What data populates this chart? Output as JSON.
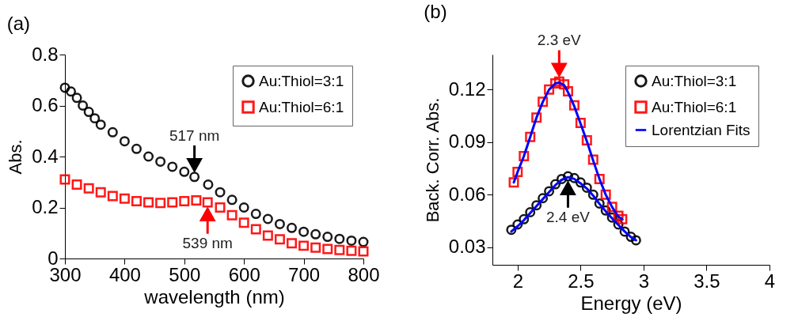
{
  "chart_data": [
    {
      "type": "scatter",
      "title": "(a)",
      "xlabel": "wavelength (nm)",
      "ylabel": "Abs.",
      "xlim": [
        300,
        800
      ],
      "xticks": [
        300,
        400,
        500,
        600,
        700,
        800
      ],
      "ylim": [
        0,
        0.8
      ],
      "yticks": [
        0,
        0.2,
        0.4,
        0.6,
        0.8
      ],
      "legend": "top right",
      "grid": false,
      "series": [
        {
          "name": "Au:Thiol=3:1",
          "color": "#000000",
          "marker": "circle",
          "x": [
            300,
            310,
            320,
            330,
            340,
            350,
            360,
            380,
            400,
            420,
            440,
            460,
            480,
            500,
            517,
            540,
            560,
            580,
            600,
            620,
            640,
            660,
            680,
            700,
            720,
            740,
            760,
            780,
            800
          ],
          "values": [
            0.67,
            0.655,
            0.63,
            0.6,
            0.575,
            0.55,
            0.525,
            0.495,
            0.46,
            0.43,
            0.4,
            0.38,
            0.36,
            0.34,
            0.32,
            0.29,
            0.26,
            0.23,
            0.2,
            0.175,
            0.155,
            0.135,
            0.12,
            0.105,
            0.095,
            0.085,
            0.077,
            0.07,
            0.065
          ]
        },
        {
          "name": "Au:Thiol=6:1",
          "color": "#ff0000",
          "marker": "square",
          "x": [
            300,
            320,
            340,
            360,
            380,
            400,
            420,
            440,
            460,
            480,
            500,
            520,
            539,
            560,
            580,
            600,
            620,
            640,
            660,
            680,
            700,
            720,
            740,
            760,
            780,
            800
          ],
          "values": [
            0.31,
            0.29,
            0.275,
            0.26,
            0.245,
            0.235,
            0.225,
            0.22,
            0.218,
            0.22,
            0.225,
            0.228,
            0.22,
            0.2,
            0.17,
            0.14,
            0.115,
            0.09,
            0.075,
            0.06,
            0.05,
            0.043,
            0.037,
            0.033,
            0.03,
            0.028
          ]
        }
      ],
      "annotations": [
        {
          "text": "517 nm",
          "x": 517,
          "y": 0.32
        },
        {
          "text": "539 nm",
          "x": 539,
          "y": 0.22
        }
      ]
    },
    {
      "type": "scatter",
      "title": "(b)",
      "xlabel": "Energy (eV)",
      "ylabel": "Back. Corr. Abs.",
      "xlim": [
        1.8,
        4
      ],
      "xticks": [
        2,
        2.5,
        3,
        3.5,
        4
      ],
      "ylim": [
        0.02,
        0.14
      ],
      "yticks": [
        0.03,
        0.06,
        0.09,
        0.12
      ],
      "legend": "top right",
      "grid": false,
      "series": [
        {
          "name": "Au:Thiol=3:1",
          "color": "#000000",
          "marker": "circle",
          "x": [
            1.95,
            2.0,
            2.05,
            2.1,
            2.15,
            2.2,
            2.25,
            2.3,
            2.35,
            2.4,
            2.45,
            2.5,
            2.55,
            2.6,
            2.65,
            2.7,
            2.75,
            2.8,
            2.85,
            2.9,
            2.94
          ],
          "values": [
            0.04,
            0.043,
            0.046,
            0.05,
            0.054,
            0.058,
            0.062,
            0.066,
            0.069,
            0.0705,
            0.0695,
            0.067,
            0.064,
            0.06,
            0.055,
            0.051,
            0.047,
            0.043,
            0.039,
            0.036,
            0.034
          ]
        },
        {
          "name": "Au:Thiol=6:1",
          "color": "#ff0000",
          "marker": "square",
          "x": [
            1.97,
            2.0,
            2.05,
            2.1,
            2.15,
            2.2,
            2.25,
            2.3,
            2.33,
            2.37,
            2.4,
            2.45,
            2.5,
            2.55,
            2.6,
            2.65,
            2.7,
            2.75,
            2.8,
            2.83
          ],
          "values": [
            0.067,
            0.073,
            0.082,
            0.093,
            0.104,
            0.113,
            0.12,
            0.1235,
            0.1245,
            0.123,
            0.119,
            0.111,
            0.101,
            0.091,
            0.08,
            0.069,
            0.06,
            0.053,
            0.048,
            0.046
          ]
        },
        {
          "name": "Lorentzian Fits",
          "type": "line",
          "color": "#0000ff",
          "x": [
            1.97,
            2.0,
            2.05,
            2.1,
            2.15,
            2.2,
            2.25,
            2.3,
            2.33,
            2.37,
            2.4,
            2.45,
            2.5,
            2.55,
            2.6,
            2.65,
            2.7,
            2.75,
            2.8,
            2.83
          ],
          "values": [
            0.067,
            0.073,
            0.082,
            0.093,
            0.104,
            0.113,
            0.12,
            0.1235,
            0.124,
            0.1225,
            0.1185,
            0.1105,
            0.1005,
            0.0905,
            0.0795,
            0.069,
            0.06,
            0.053,
            0.0475,
            0.046
          ]
        },
        {
          "type": "line",
          "color": "#0000ff",
          "x": [
            1.95,
            2.0,
            2.05,
            2.1,
            2.15,
            2.2,
            2.25,
            2.3,
            2.35,
            2.4,
            2.45,
            2.5,
            2.55,
            2.6,
            2.65,
            2.7,
            2.75,
            2.8,
            2.85,
            2.9,
            2.94
          ],
          "values": [
            0.039,
            0.042,
            0.0455,
            0.0495,
            0.0535,
            0.0575,
            0.0615,
            0.0655,
            0.0685,
            0.07,
            0.069,
            0.0665,
            0.0635,
            0.0595,
            0.0548,
            0.0505,
            0.0465,
            0.0428,
            0.039,
            0.0358,
            0.034
          ]
        }
      ],
      "annotations": [
        {
          "text": "2.3 eV",
          "x": 2.33,
          "y": 0.1245
        },
        {
          "text": "2.4 eV",
          "x": 2.4,
          "y": 0.0705
        }
      ]
    }
  ]
}
